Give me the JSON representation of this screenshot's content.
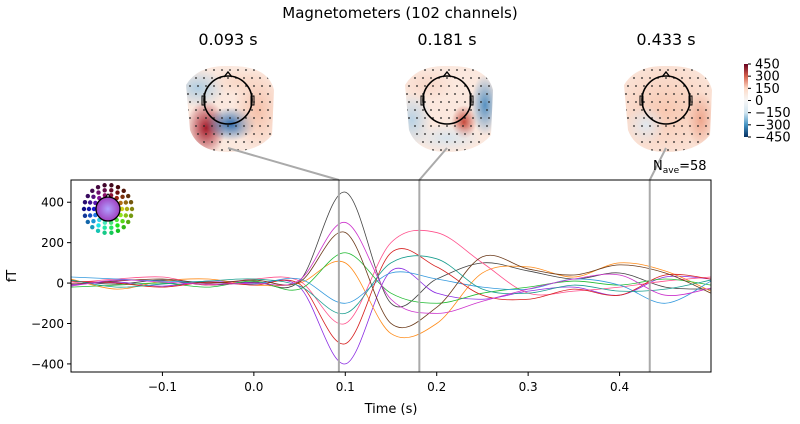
{
  "chart_data": {
    "type": "line",
    "title": "Magnetometers (102 channels)",
    "xlabel": "Time (s)",
    "ylabel": "fT",
    "xlim": [
      -0.2,
      0.5
    ],
    "ylim": [
      -440,
      510
    ],
    "xticks": [
      -0.1,
      0.0,
      0.1,
      0.2,
      0.3,
      0.4
    ],
    "xtick_labels": [
      "−0.1",
      "0.0",
      "0.1",
      "0.2",
      "0.3",
      "0.4"
    ],
    "yticks": [
      400,
      200,
      0,
      -200,
      -400
    ],
    "ytick_labels": [
      "400",
      "200",
      "0",
      "−200",
      "−400"
    ],
    "grid": false,
    "annotation": {
      "nave_label": "N",
      "nave_sub": "ave",
      "nave_value": "=58"
    },
    "topomap_times": [
      0.093,
      0.181,
      0.433
    ],
    "topomap_labels": [
      "0.093 s",
      "0.181 s",
      "0.433 s"
    ],
    "colorbar": {
      "range": [
        -450,
        450
      ],
      "tick_labels": [
        "450",
        "300",
        "150",
        "0",
        "−150",
        "−300",
        "−450"
      ],
      "colormap": "RdBu_r",
      "colors": [
        "#67001f",
        "#d6604d",
        "#fddbc7",
        "#f7f7f7",
        "#d1e5f0",
        "#4393c3",
        "#053061"
      ]
    },
    "x": [
      -0.2,
      -0.15,
      -0.1,
      -0.05,
      0.0,
      0.05,
      0.1,
      0.15,
      0.2,
      0.25,
      0.3,
      0.35,
      0.4,
      0.45,
      0.5
    ],
    "series": [
      {
        "color": "#444444",
        "values": [
          10,
          -5,
          15,
          -10,
          5,
          10,
          450,
          -100,
          20,
          100,
          60,
          20,
          50,
          -20,
          -30
        ]
      },
      {
        "color": "#8a2be2",
        "values": [
          -10,
          5,
          -15,
          10,
          0,
          -20,
          -400,
          60,
          -50,
          -80,
          -40,
          -20,
          -60,
          30,
          20
        ]
      },
      {
        "color": "#ff8c1a",
        "values": [
          20,
          -30,
          10,
          20,
          -10,
          0,
          100,
          -250,
          -200,
          50,
          80,
          30,
          100,
          60,
          -40
        ]
      },
      {
        "color": "#ff4f8b",
        "values": [
          0,
          20,
          30,
          -10,
          20,
          10,
          -200,
          200,
          250,
          100,
          -50,
          -40,
          -20,
          10,
          30
        ]
      },
      {
        "color": "#22bb33",
        "values": [
          -20,
          -10,
          0,
          -20,
          10,
          -30,
          150,
          -50,
          -100,
          -50,
          -20,
          10,
          -10,
          20,
          -10
        ]
      },
      {
        "color": "#3399dd",
        "values": [
          30,
          20,
          10,
          5,
          -5,
          20,
          -100,
          50,
          20,
          -20,
          -30,
          20,
          -10,
          -100,
          10
        ]
      },
      {
        "color": "#d62020",
        "values": [
          10,
          0,
          -20,
          5,
          -10,
          -5,
          -300,
          150,
          80,
          -60,
          -80,
          -30,
          -60,
          40,
          20
        ]
      },
      {
        "color": "#6b3a1a",
        "values": [
          -5,
          10,
          20,
          0,
          15,
          5,
          250,
          -200,
          -120,
          130,
          70,
          40,
          90,
          50,
          -50
        ]
      },
      {
        "color": "#1a9e8f",
        "values": [
          15,
          -20,
          -5,
          10,
          20,
          -15,
          -150,
          100,
          120,
          -30,
          -50,
          -10,
          -40,
          -30,
          15
        ]
      },
      {
        "color": "#cc33cc",
        "values": [
          -15,
          15,
          5,
          -5,
          0,
          15,
          300,
          -80,
          -150,
          -90,
          -30,
          20,
          40,
          -60,
          -25
        ]
      }
    ]
  }
}
